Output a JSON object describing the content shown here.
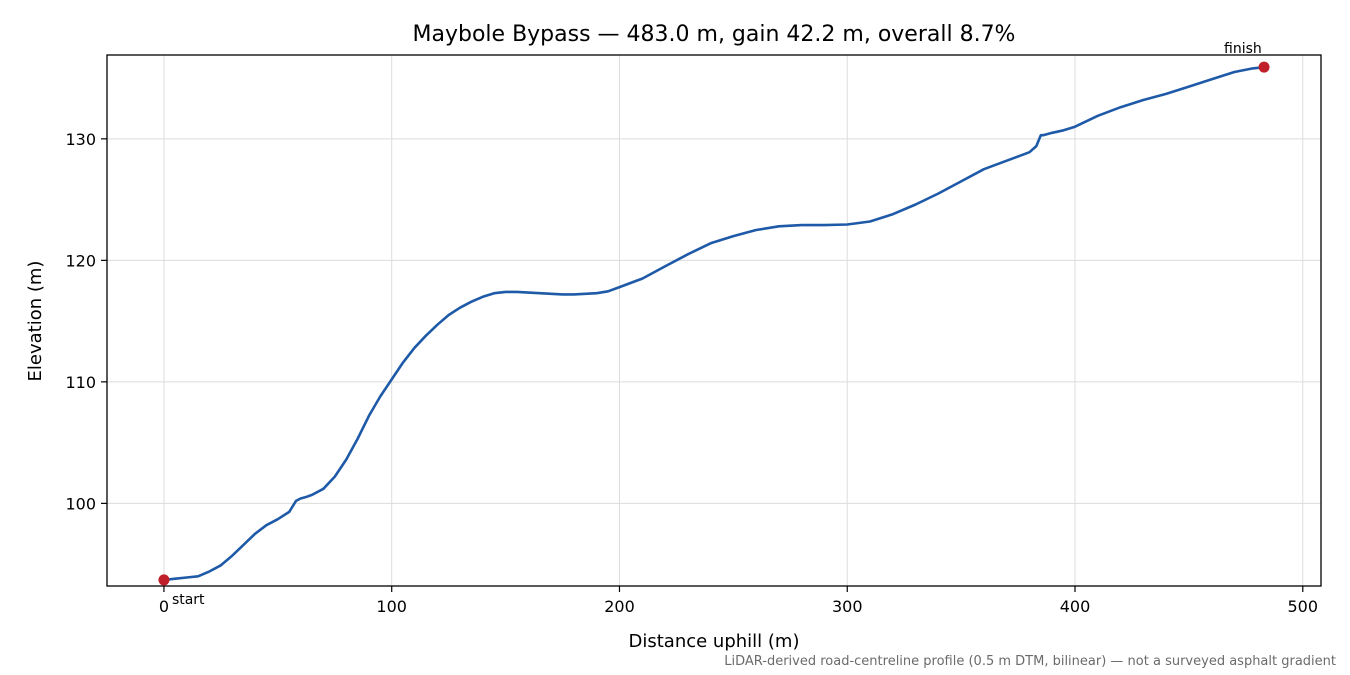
{
  "chart_data": {
    "type": "line",
    "title": "Maybole Bypass — 483.0 m, gain 42.2 m, overall 8.7%",
    "xlabel": "Distance uphill (m)",
    "ylabel": "Elevation (m)",
    "xlim": [
      -25,
      508
    ],
    "ylim": [
      93.2,
      136.9
    ],
    "xticks": [
      0,
      100,
      200,
      300,
      400,
      500
    ],
    "yticks": [
      100,
      110,
      120,
      130
    ],
    "grid": true,
    "line_color": "#1f5aa8",
    "marker_color": "#c0202a",
    "series": [
      {
        "x": [
          0,
          5,
          10,
          15,
          20,
          25,
          30,
          35,
          40,
          45,
          50,
          55,
          58,
          60,
          62,
          65,
          70,
          75,
          80,
          85,
          90,
          95,
          100,
          105,
          110,
          115,
          120,
          125,
          130,
          135,
          140,
          145,
          150,
          155,
          160,
          165,
          170,
          175,
          180,
          185,
          190,
          195,
          200,
          210,
          220,
          230,
          240,
          250,
          260,
          270,
          280,
          290,
          300,
          310,
          320,
          330,
          340,
          350,
          360,
          370,
          380,
          383,
          385,
          386,
          390,
          395,
          400,
          410,
          420,
          430,
          440,
          450,
          460,
          470,
          478,
          483
        ],
        "y": [
          93.7,
          93.8,
          93.9,
          94.0,
          94.4,
          94.9,
          95.7,
          96.6,
          97.5,
          98.2,
          98.7,
          99.3,
          100.2,
          100.4,
          100.5,
          100.7,
          101.2,
          102.2,
          103.6,
          105.3,
          107.2,
          108.8,
          110.2,
          111.6,
          112.8,
          113.8,
          114.7,
          115.5,
          116.1,
          116.6,
          117.0,
          117.3,
          117.4,
          117.4,
          117.35,
          117.3,
          117.25,
          117.2,
          117.2,
          117.25,
          117.3,
          117.45,
          117.8,
          118.5,
          119.5,
          120.5,
          121.4,
          122.0,
          122.5,
          122.8,
          122.9,
          122.9,
          122.95,
          123.2,
          123.8,
          124.6,
          125.5,
          126.5,
          127.5,
          128.2,
          128.9,
          129.4,
          130.3,
          130.3,
          130.5,
          130.7,
          131.0,
          131.9,
          132.6,
          133.2,
          133.7,
          134.3,
          134.9,
          135.5,
          135.8,
          135.9
        ]
      }
    ],
    "annotations": [
      {
        "text": "start",
        "x": 0,
        "y": 93.7
      },
      {
        "text": "finish",
        "x": 483,
        "y": 135.9
      }
    ],
    "footnote": "LiDAR-derived road-centreline profile (0.5 m DTM, bilinear) — not a surveyed asphalt gradient"
  }
}
